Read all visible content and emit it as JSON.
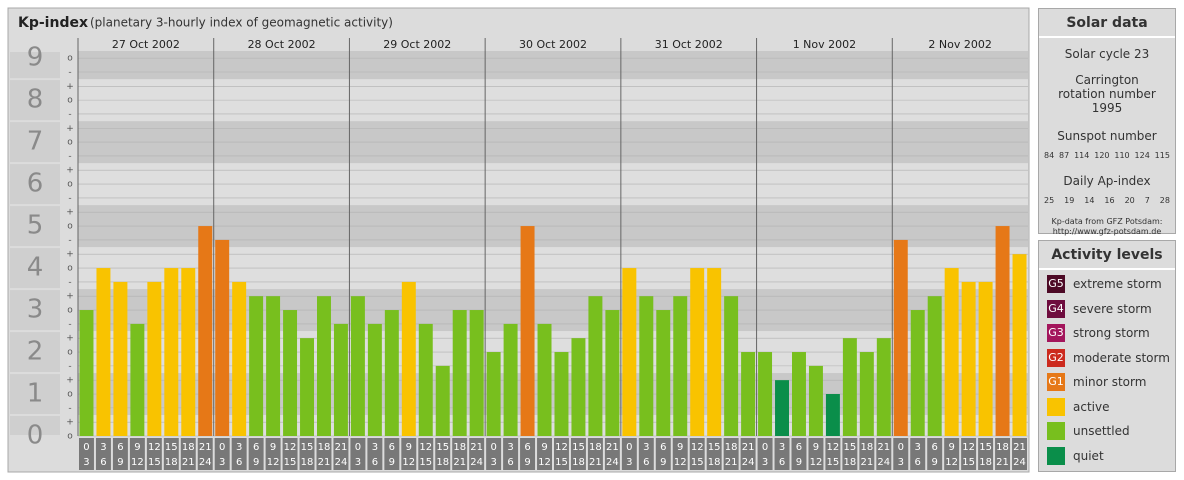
{
  "chart_data": {
    "type": "bar",
    "title": "Kp-index",
    "subtitle": "(planetary 3-hourly index of geomagnetic activity)",
    "ylim": [
      0,
      9.17
    ],
    "major_yticks": [
      0,
      1,
      2,
      3,
      4,
      5,
      6,
      7,
      8,
      9
    ],
    "yticks": [
      {
        "value": 0,
        "label": "o"
      },
      {
        "value": 0.33,
        "label": "+"
      },
      {
        "value": 0.67,
        "label": "-"
      },
      {
        "value": 1,
        "label": "o"
      },
      {
        "value": 1.33,
        "label": "+"
      },
      {
        "value": 1.67,
        "label": "-"
      },
      {
        "value": 2,
        "label": "o"
      },
      {
        "value": 2.33,
        "label": "+"
      },
      {
        "value": 2.67,
        "label": "-"
      },
      {
        "value": 3,
        "label": "o"
      },
      {
        "value": 3.33,
        "label": "+"
      },
      {
        "value": 3.67,
        "label": "-"
      },
      {
        "value": 4,
        "label": "o"
      },
      {
        "value": 4.33,
        "label": "+"
      },
      {
        "value": 4.67,
        "label": "-"
      },
      {
        "value": 5,
        "label": "o"
      },
      {
        "value": 5.33,
        "label": "+"
      },
      {
        "value": 5.67,
        "label": "-"
      },
      {
        "value": 6,
        "label": "o"
      },
      {
        "value": 6.33,
        "label": "+"
      },
      {
        "value": 6.67,
        "label": "-"
      },
      {
        "value": 7,
        "label": "o"
      },
      {
        "value": 7.33,
        "label": "+"
      },
      {
        "value": 7.67,
        "label": "-"
      },
      {
        "value": 8,
        "label": "o"
      },
      {
        "value": 8.33,
        "label": "+"
      },
      {
        "value": 8.67,
        "label": "-"
      },
      {
        "value": 9,
        "label": "o"
      }
    ],
    "hour_labels": [
      [
        "0",
        "3"
      ],
      [
        "3",
        "6"
      ],
      [
        "6",
        "9"
      ],
      [
        "9",
        "12"
      ],
      [
        "12",
        "15"
      ],
      [
        "15",
        "18"
      ],
      [
        "18",
        "21"
      ],
      [
        "21",
        "24"
      ]
    ],
    "days": [
      {
        "date": "27 Oct 2002",
        "values": [
          3,
          4,
          3.67,
          2.67,
          3.67,
          4,
          4,
          5
        ],
        "colors": [
          "#78bf1e",
          "#f9c300",
          "#f9c300",
          "#78bf1e",
          "#f9c300",
          "#f9c300",
          "#f9c300",
          "#e67817"
        ]
      },
      {
        "date": "28 Oct 2002",
        "values": [
          4.67,
          3.67,
          3.33,
          3.33,
          3,
          2.33,
          3.33,
          2.67
        ],
        "colors": [
          "#e67817",
          "#f9c300",
          "#78bf1e",
          "#78bf1e",
          "#78bf1e",
          "#78bf1e",
          "#78bf1e",
          "#78bf1e"
        ]
      },
      {
        "date": "29 Oct 2002",
        "values": [
          3.33,
          2.67,
          3,
          3.67,
          2.67,
          1.67,
          3,
          3
        ],
        "colors": [
          "#78bf1e",
          "#78bf1e",
          "#78bf1e",
          "#f9c300",
          "#78bf1e",
          "#78bf1e",
          "#78bf1e",
          "#78bf1e"
        ]
      },
      {
        "date": "30 Oct 2002",
        "values": [
          2,
          2.67,
          5,
          2.67,
          2,
          2.33,
          3.33,
          3
        ],
        "colors": [
          "#78bf1e",
          "#78bf1e",
          "#e67817",
          "#78bf1e",
          "#78bf1e",
          "#78bf1e",
          "#78bf1e",
          "#78bf1e"
        ]
      },
      {
        "date": "31 Oct 2002",
        "values": [
          4,
          3.33,
          3,
          3.33,
          4,
          4,
          3.33,
          2
        ],
        "colors": [
          "#f9c300",
          "#78bf1e",
          "#78bf1e",
          "#78bf1e",
          "#f9c300",
          "#f9c300",
          "#78bf1e",
          "#78bf1e"
        ]
      },
      {
        "date": "1 Nov 2002",
        "values": [
          2,
          1.33,
          2,
          1.67,
          1,
          2.33,
          2,
          2.33
        ],
        "colors": [
          "#78bf1e",
          "#0a8e4a",
          "#78bf1e",
          "#78bf1e",
          "#0a8e4a",
          "#78bf1e",
          "#78bf1e",
          "#78bf1e"
        ]
      },
      {
        "date": "2 Nov 2002",
        "values": [
          4.67,
          3,
          3.33,
          4,
          3.67,
          3.67,
          5,
          4.33
        ],
        "colors": [
          "#e67817",
          "#78bf1e",
          "#78bf1e",
          "#f9c300",
          "#f9c300",
          "#f9c300",
          "#e67817",
          "#f9c300"
        ]
      }
    ]
  },
  "solar_data": {
    "title": "Solar data",
    "cycle": "Solar cycle 23",
    "rotation": "Carrington rotation number 1995",
    "sunspot_title": "Sunspot number",
    "sunspot_values": [
      84,
      87,
      114,
      120,
      110,
      124,
      115
    ],
    "ap_title": "Daily Ap-index",
    "ap_values": [
      25,
      19,
      14,
      16,
      20,
      7,
      28
    ],
    "source": "Kp-data from GFZ Potsdam:",
    "url": "http://www.gfz-potsdam.de"
  },
  "activity_levels": {
    "title": "Activity levels",
    "items": [
      {
        "badge": "G5",
        "label": "extreme storm",
        "color": "#4d0a26"
      },
      {
        "badge": "G4",
        "label": "severe storm",
        "color": "#6e0c3e"
      },
      {
        "badge": "G3",
        "label": "strong storm",
        "color": "#a3155c"
      },
      {
        "badge": "G2",
        "label": "moderate storm",
        "color": "#cc2a1e"
      },
      {
        "badge": "G1",
        "label": "minor storm",
        "color": "#e67817"
      },
      {
        "label": "active",
        "color": "#f9c300"
      },
      {
        "label": "unsettled",
        "color": "#78bf1e"
      },
      {
        "label": "quiet",
        "color": "#0a8e4a"
      }
    ]
  }
}
